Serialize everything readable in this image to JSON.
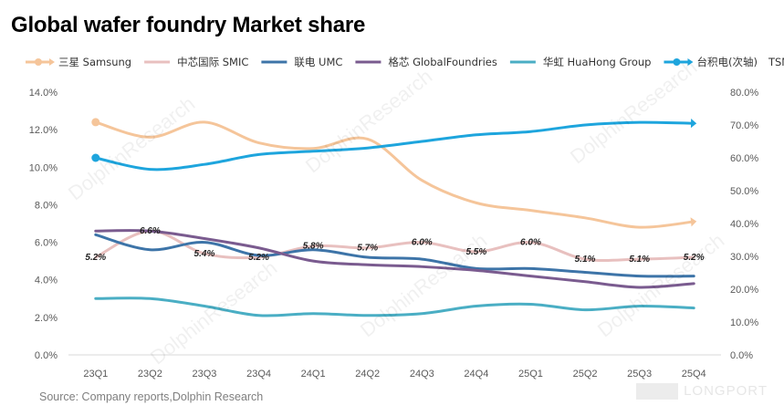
{
  "title": "Global wafer foundry Market share",
  "source": "Source: Company  reports,Dolphin  Research",
  "brand": "LONGPORT",
  "watermark": "DolphinResearch",
  "chart_data": {
    "type": "line",
    "categories": [
      "23Q1",
      "23Q2",
      "23Q3",
      "23Q4",
      "24Q1",
      "24Q2",
      "24Q3",
      "24Q4",
      "25Q1",
      "25Q2",
      "25Q3",
      "25Q4"
    ],
    "ylim_left": [
      0,
      14
    ],
    "ylim_right": [
      0,
      80
    ],
    "yticks_left": [
      "0.0%",
      "2.0%",
      "4.0%",
      "6.0%",
      "8.0%",
      "10.0%",
      "12.0%",
      "14.0%"
    ],
    "yticks_right": [
      "0.0%",
      "10.0%",
      "20.0%",
      "30.0%",
      "40.0%",
      "50.0%",
      "60.0%",
      "70.0%",
      "80.0%"
    ],
    "grid": false,
    "legend_position": "top",
    "series": [
      {
        "name": "三星 Samsung",
        "axis": "left",
        "color": "#f5c59a",
        "marker": "circle-start-arrow-end",
        "values": [
          12.4,
          11.6,
          12.4,
          11.3,
          11.0,
          11.5,
          9.3,
          8.1,
          7.7,
          7.3,
          6.8,
          7.1
        ]
      },
      {
        "name": "中芯国际 SMIC",
        "axis": "left",
        "color": "#e8c0bf",
        "marker": "none",
        "values": [
          5.2,
          6.6,
          5.4,
          5.2,
          5.8,
          5.7,
          6.0,
          5.5,
          6.0,
          5.1,
          5.1,
          5.2
        ],
        "data_labels": [
          "5.2%",
          "6.6%",
          "5.4%",
          "5.2%",
          "5.8%",
          "5.7%",
          "6.0%",
          "5.5%",
          "6.0%",
          "5.1%",
          "5.1%",
          "5.2%"
        ]
      },
      {
        "name": "联电 UMC",
        "axis": "left",
        "color": "#3d74a8",
        "marker": "none",
        "values": [
          6.4,
          5.6,
          6.0,
          5.3,
          5.6,
          5.2,
          5.1,
          4.6,
          4.6,
          4.4,
          4.2,
          4.2
        ]
      },
      {
        "name": "格芯 GlobalFoundries",
        "axis": "left",
        "color": "#7a5b8f",
        "marker": "none",
        "values": [
          6.6,
          6.6,
          6.2,
          5.7,
          5.0,
          4.8,
          4.7,
          4.5,
          4.2,
          3.9,
          3.6,
          3.8
        ]
      },
      {
        "name": "华虹 HuaHong Group",
        "axis": "left",
        "color": "#4aaec4",
        "marker": "none",
        "values": [
          3.0,
          3.0,
          2.6,
          2.1,
          2.2,
          2.1,
          2.2,
          2.6,
          2.7,
          2.4,
          2.6,
          2.5
        ]
      },
      {
        "name": "台积电(次轴)",
        "axis": "right",
        "color": "#1ea5dd",
        "marker": "circle-start-arrow-end",
        "values": [
          60.0,
          56.5,
          58.0,
          61.0,
          62.0,
          63.0,
          65.0,
          67.0,
          68.0,
          70.0,
          70.8,
          70.5
        ]
      }
    ],
    "extra_legend_text": "TSMC"
  }
}
